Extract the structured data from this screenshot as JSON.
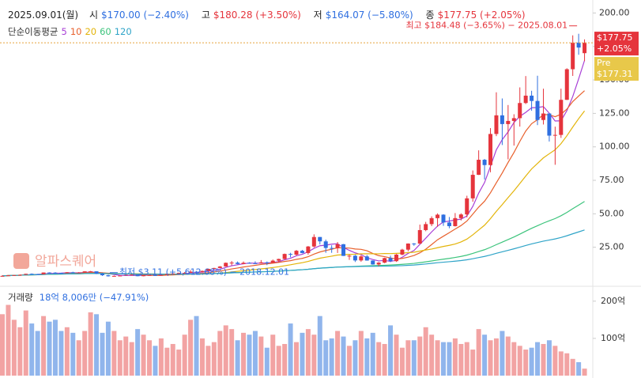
{
  "chart_data": {
    "type": "candlestick",
    "header": {
      "date": "2025.09.01(월)",
      "open_label": "시",
      "open_text": "$170.00 (−2.40%)",
      "high_label": "고",
      "high_text": "$180.28 (+3.50%)",
      "low_label": "저",
      "low_text": "$164.07 (−5.80%)",
      "close_label": "종",
      "close_text": "$177.75 (+2.05%)"
    },
    "ma_title": "단순이동평균",
    "moving_averages": [
      {
        "period": 5,
        "color": "#a83fd6"
      },
      {
        "period": 10,
        "color": "#e8602c"
      },
      {
        "period": 20,
        "color": "#e3b409"
      },
      {
        "period": 60,
        "color": "#3cc47c"
      },
      {
        "period": 120,
        "color": "#2fa4c8"
      }
    ],
    "up_color": "#e5343c",
    "down_color": "#2f6fe0",
    "open": [
      3.6,
      3.61,
      4.06,
      4.22,
      4.47,
      5.17,
      5.0,
      4.84,
      6.14,
      6.06,
      5.79,
      5.62,
      6.31,
      5.92,
      6.12,
      7.02,
      7.03,
      5.27,
      4.09,
      3.34,
      3.59,
      3.85,
      4.49,
      4.52,
      3.39,
      4.11,
      4.22,
      4.19,
      4.35,
      5.03,
      5.43,
      5.88,
      5.91,
      6.75,
      6.59,
      7.31,
      8.87,
      9.5,
      10.62,
      13.38,
      13.53,
      12.53,
      13.4,
      13.06,
      12.99,
      13.71,
      13.35,
      15.01,
      16.25,
      20.0,
      19.5,
      22.38,
      20.72,
      25.57,
      32.67,
      29.41,
      24.49,
      24.39,
      27.29,
      18.55,
      18.68,
      15.16,
      18.16,
      15.09,
      12.14,
      13.5,
      16.92,
      14.61,
      19.54,
      23.22,
      27.78,
      27.75,
      37.83,
      42.3,
      46.73,
      49.35,
      43.5,
      40.78,
      46.77,
      49.52,
      61.53,
      79.11,
      90.36,
      86.4,
      109.63,
      123.54,
      117.02,
      119.37,
      121.44,
      132.76,
      138.25,
      134.29,
      120.07,
      124.92,
      108.38,
      108.92,
      135.13,
      157.99,
      177.87,
      170.0
    ],
    "high": [
      4.17,
      4.17,
      4.26,
      4.7,
      5.26,
      5.46,
      5.1,
      6.17,
      6.3,
      6.38,
      5.94,
      6.48,
      6.71,
      6.45,
      7.05,
      7.32,
      7.08,
      5.82,
      4.45,
      3.9,
      4.0,
      4.66,
      4.83,
      4.6,
      4.18,
      4.55,
      4.32,
      4.65,
      5.11,
      5.6,
      6.0,
      6.49,
      7.91,
      7.3,
      7.6,
      9.08,
      9.67,
      10.99,
      13.63,
      14.73,
      14.4,
      14.4,
      13.8,
      14.53,
      15.43,
      14.37,
      15.82,
      16.46,
      20.3,
      20.86,
      23.0,
      23.0,
      25.94,
      34.65,
      32.68,
      30.75,
      26.5,
      28.9,
      27.44,
      19.45,
      19.3,
      19.0,
      19.21,
      15.2,
      13.9,
      17.23,
      18.75,
      20.0,
      23.86,
      27.9,
      28.1,
      41.94,
      43.97,
      48.09,
      50.28,
      49.7,
      47.6,
      50.55,
      50.4,
      63.49,
      82.37,
      97.4,
      90.98,
      114.0,
      140.76,
      136.15,
      131.26,
      124.36,
      144.42,
      152.89,
      141.9,
      153.13,
      143.44,
      125.09,
      115.1,
      143.49,
      158.71,
      183.3,
      184.48,
      180.28
    ],
    "low": [
      3.45,
      3.55,
      3.72,
      4.1,
      4.42,
      4.88,
      4.7,
      4.82,
      5.35,
      5.37,
      5.28,
      5.55,
      5.8,
      5.85,
      6.05,
      6.65,
      4.95,
      3.6,
      3.11,
      3.24,
      3.55,
      3.75,
      4.4,
      3.36,
      3.29,
      4.05,
      3.7,
      4.13,
      4.31,
      4.95,
      5.3,
      5.7,
      5.89,
      4.51,
      6.1,
      7.15,
      8.34,
      9.3,
      10.5,
      11.5,
      12.2,
      12.3,
      12.75,
      12.73,
      12.89,
      11.65,
      13.3,
      13.66,
      16.0,
      17.5,
      18.8,
      20.49,
      19.5,
      24.8,
      27.08,
      20.86,
      20.85,
      20.74,
      18.5,
      15.56,
      14.0,
      14.2,
      15.0,
      12.0,
      10.81,
      13.1,
      13.9,
      14.08,
      19.0,
      22.0,
      26.1,
      27.5,
      37.0,
      40.8,
      40.35,
      41.0,
      39.2,
      40.5,
      45.0,
      47.32,
      59.0,
      79.0,
      75.61,
      81.0,
      108.0,
      101.37,
      90.69,
      100.95,
      115.14,
      132.0,
      127.0,
      116.25,
      116.7,
      104.0,
      86.62,
      106.7,
      135.0,
      153.0,
      168.8,
      164.07
    ],
    "close": [
      3.61,
      4.06,
      4.22,
      4.47,
      5.17,
      5.0,
      4.84,
      6.14,
      6.06,
      5.79,
      5.62,
      6.31,
      5.92,
      6.12,
      7.02,
      7.03,
      5.27,
      4.09,
      3.34,
      3.59,
      3.85,
      4.49,
      4.52,
      3.39,
      4.11,
      4.22,
      4.19,
      4.35,
      5.03,
      5.43,
      5.88,
      5.91,
      6.75,
      6.59,
      7.31,
      8.87,
      9.5,
      10.62,
      13.38,
      13.53,
      12.53,
      13.4,
      13.06,
      12.99,
      13.71,
      13.35,
      15.01,
      16.25,
      20.0,
      19.5,
      22.38,
      20.72,
      25.57,
      32.67,
      29.41,
      24.49,
      24.39,
      27.29,
      18.55,
      18.68,
      15.16,
      18.16,
      15.09,
      12.14,
      13.5,
      16.92,
      14.61,
      19.54,
      23.22,
      27.78,
      27.75,
      37.83,
      42.3,
      46.73,
      49.35,
      43.5,
      40.78,
      46.77,
      49.52,
      61.53,
      79.11,
      90.36,
      86.4,
      109.63,
      123.54,
      117.02,
      119.37,
      121.44,
      132.76,
      138.25,
      134.29,
      120.07,
      124.92,
      108.38,
      108.92,
      135.13,
      157.99,
      177.87,
      174.18,
      177.75
    ],
    "ylim": [
      0,
      209.7
    ],
    "yticks": [
      {
        "value": 25,
        "label": "25.00"
      },
      {
        "value": 50,
        "label": "50.00"
      },
      {
        "value": 75,
        "label": "75.00"
      },
      {
        "value": 100,
        "label": "100.00"
      },
      {
        "value": 125,
        "label": "125.00"
      },
      {
        "value": 150,
        "label": "150.00"
      },
      {
        "value": 175,
        "label": "175.00"
      },
      {
        "value": 200,
        "label": "200.00"
      }
    ],
    "high_annotation": "최고 $184.48 (−3.65%) − 2025.08.01",
    "low_annotation": "최저 $3.11 (+5,612.68%) − 2018.12.01",
    "last_price": "$177.75",
    "last_change": "+2.05%",
    "pre_label": "Pre",
    "pre_price": "$177.31",
    "watermark": "알파스퀘어",
    "volume": {
      "title": "거래량",
      "summary": "18억 8,006만 (−47.91%)",
      "values": [
        165,
        190,
        150,
        130,
        175,
        140,
        120,
        160,
        145,
        150,
        120,
        130,
        115,
        95,
        120,
        170,
        165,
        115,
        145,
        120,
        95,
        105,
        90,
        125,
        110,
        95,
        80,
        100,
        75,
        85,
        70,
        110,
        150,
        160,
        100,
        80,
        90,
        120,
        135,
        125,
        95,
        115,
        110,
        120,
        105,
        75,
        110,
        80,
        85,
        140,
        90,
        115,
        125,
        110,
        160,
        95,
        100,
        120,
        105,
        80,
        95,
        120,
        100,
        115,
        90,
        85,
        135,
        110,
        75,
        95,
        95,
        105,
        130,
        110,
        95,
        90,
        90,
        100,
        85,
        90,
        70,
        125,
        110,
        95,
        100,
        120,
        105,
        90,
        80,
        70,
        75,
        90,
        85,
        95,
        80,
        65,
        60,
        45,
        36.1,
        18.8006
      ],
      "ylim": [
        0,
        223
      ],
      "yticks": [
        {
          "value": 100,
          "label": "100억"
        },
        {
          "value": 200,
          "label": "200억"
        }
      ],
      "up_color": "#f2a3a3",
      "down_color": "#90b5ec"
    }
  }
}
